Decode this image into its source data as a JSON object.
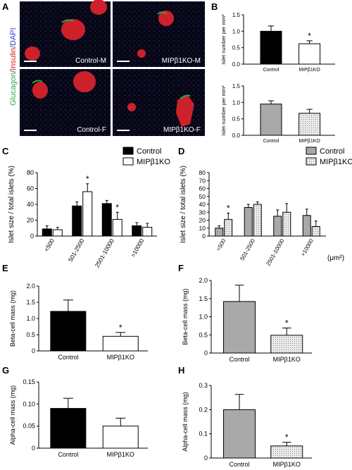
{
  "panel_letters": [
    "A",
    "B",
    "C",
    "D",
    "E",
    "F",
    "G",
    "H"
  ],
  "micrographs": {
    "stain_label_parts": [
      "Glucagon",
      "/",
      "Insulin",
      "/",
      "DAPI"
    ],
    "stain_colors": [
      "#2fa84f",
      "#444444",
      "#d42020",
      "#444444",
      "#3a3ad0"
    ],
    "tiles": [
      {
        "label": "Control-M"
      },
      {
        "label": "MIPβ1KO-M"
      },
      {
        "label": "Control-F"
      },
      {
        "label": "MIPβ1KO-F"
      }
    ]
  },
  "colors": {
    "male_fill": "#000000",
    "control_open": "#ffffff",
    "female_fill": "#a9a9a9",
    "ko_dotted": "#dcdcdc"
  },
  "chart_data": [
    {
      "panel": "B1",
      "type": "bar",
      "categories": [
        "Control",
        "MIPβ1KO"
      ],
      "values": [
        1.0,
        0.62
      ],
      "errors": [
        0.16,
        0.09
      ],
      "ylabel": "Islet number per mm²",
      "ylim": [
        0,
        1.5
      ],
      "yticks": [
        0.0,
        0.5,
        1.0,
        1.5
      ],
      "ytick_labels": [
        "0.0",
        "0.5",
        "1.0",
        "1.5"
      ],
      "significance": [
        false,
        true
      ],
      "fills": [
        "black",
        "white"
      ]
    },
    {
      "panel": "B2",
      "type": "bar",
      "categories": [
        "Control",
        "MIPβ1KO"
      ],
      "values": [
        0.95,
        0.67
      ],
      "errors": [
        0.1,
        0.12
      ],
      "ylabel": "Islet number per mm²",
      "ylim": [
        0,
        1.5
      ],
      "yticks": [
        0.0,
        0.5,
        1.0,
        1.5
      ],
      "ytick_labels": [
        "0.0",
        "0.5",
        "1.0",
        "1.5"
      ],
      "significance": [
        false,
        false
      ],
      "fills": [
        "gray",
        "dotted"
      ]
    },
    {
      "panel": "C",
      "type": "bar",
      "categories": [
        "<500",
        "501-2500",
        "2501-10000",
        ">10000"
      ],
      "series": [
        {
          "name": "Control",
          "values": [
            9,
            38,
            41,
            13
          ],
          "errors": [
            4,
            5,
            4,
            4
          ]
        },
        {
          "name": "MIPβ1KO",
          "values": [
            8,
            56,
            21,
            11
          ],
          "errors": [
            3,
            10,
            9,
            5
          ]
        }
      ],
      "ylabel": "Islet size / total islets (%)",
      "ylim": [
        0,
        80
      ],
      "yticks": [
        0,
        20,
        40,
        60,
        80
      ],
      "ytick_labels": [
        "0",
        "20",
        "40",
        "60",
        "80"
      ],
      "significance": [
        [
          false,
          false
        ],
        [
          false,
          true
        ],
        [
          false,
          true
        ],
        [
          false,
          false
        ]
      ],
      "fills": [
        "black",
        "white"
      ],
      "legend": "top-right"
    },
    {
      "panel": "D",
      "type": "bar",
      "categories": [
        "<500",
        "501-2500",
        "2501-10000",
        ">10000"
      ],
      "series": [
        {
          "name": "Control",
          "values": [
            10,
            36,
            25,
            26
          ],
          "errors": [
            3,
            4,
            8,
            8
          ]
        },
        {
          "name": "MIPβ1KO",
          "values": [
            21,
            40,
            30,
            12
          ],
          "errors": [
            8,
            3,
            11,
            7
          ]
        }
      ],
      "ylabel": "Islet size / total islets (%)",
      "ylim": [
        0,
        80
      ],
      "yticks": [
        0,
        10,
        20,
        30,
        40,
        50,
        60,
        70,
        80
      ],
      "ytick_labels": [
        "0",
        "10",
        "20",
        "30",
        "40",
        "50",
        "60",
        "70",
        "80"
      ],
      "unit_label": "(μm²)",
      "significance": [
        [
          false,
          true
        ],
        [
          false,
          false
        ],
        [
          false,
          false
        ],
        [
          false,
          false
        ]
      ],
      "fills": [
        "gray",
        "dotted"
      ],
      "legend": "top-right"
    },
    {
      "panel": "E",
      "type": "bar",
      "categories": [
        "Control",
        "MIPβ1KO"
      ],
      "values": [
        1.22,
        0.45
      ],
      "errors": [
        0.35,
        0.12
      ],
      "ylabel": "Beta-cell mass (mg)",
      "ylim": [
        0,
        2.0
      ],
      "yticks": [
        0,
        0.5,
        1.0,
        1.5,
        2.0
      ],
      "ytick_labels": [
        "0",
        "0.5",
        "1.0",
        "1.5",
        "2.0"
      ],
      "significance": [
        false,
        true
      ],
      "fills": [
        "black",
        "white"
      ]
    },
    {
      "panel": "F",
      "type": "bar",
      "categories": [
        "Control",
        "MIPβ1KO"
      ],
      "values": [
        1.42,
        0.49
      ],
      "errors": [
        0.45,
        0.2
      ],
      "ylabel": "Beta-cell mass (mg)",
      "ylim": [
        0,
        2.0
      ],
      "yticks": [
        0,
        0.5,
        1.0,
        1.5,
        2.0
      ],
      "ytick_labels": [
        "0",
        "0.5",
        "1.0",
        "1.5",
        "2.0"
      ],
      "significance": [
        false,
        true
      ],
      "fills": [
        "gray",
        "dotted"
      ]
    },
    {
      "panel": "G",
      "type": "bar",
      "categories": [
        "Control",
        "MIPβ1KO"
      ],
      "values": [
        0.09,
        0.05
      ],
      "errors": [
        0.023,
        0.018
      ],
      "ylabel": "Alpha-cell mass (mg)",
      "ylim": [
        0,
        0.15
      ],
      "yticks": [
        0,
        0.05,
        0.1,
        0.15
      ],
      "ytick_labels": [
        "0",
        "0.05",
        "0.10",
        "0.15"
      ],
      "significance": [
        false,
        false
      ],
      "fills": [
        "black",
        "white"
      ]
    },
    {
      "panel": "H",
      "type": "bar",
      "categories": [
        "Control",
        "MIPβ1KO"
      ],
      "values": [
        0.2,
        0.05
      ],
      "errors": [
        0.063,
        0.015
      ],
      "ylabel": "Alpha-cell mass (mg)",
      "ylim": [
        0,
        0.3
      ],
      "yticks": [
        0,
        0.1,
        0.2,
        0.3
      ],
      "ytick_labels": [
        "0",
        "0.1",
        "0.2",
        "0.3"
      ],
      "significance": [
        false,
        true
      ],
      "fills": [
        "gray",
        "dotted"
      ]
    }
  ]
}
